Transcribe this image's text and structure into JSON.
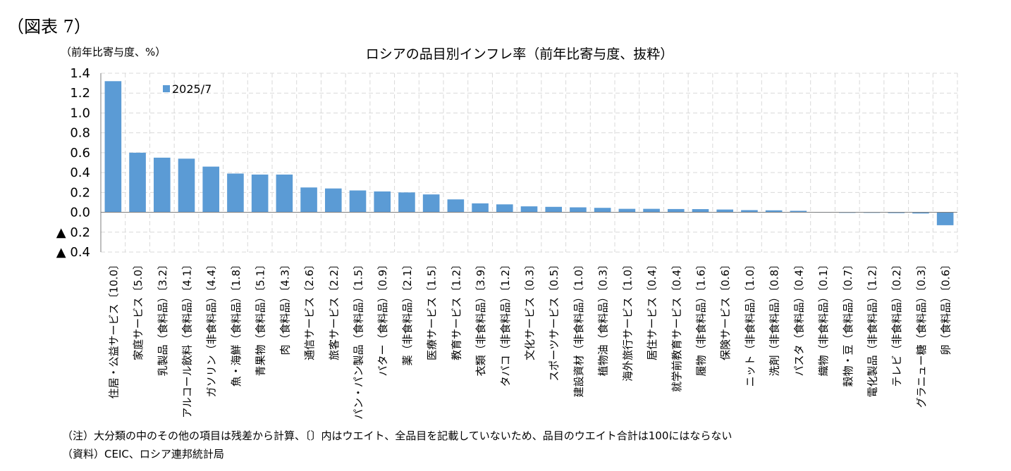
{
  "figure_label": "（図表 7）",
  "unit_label": "（前年比寄与度、%）",
  "note": "（注）大分類の中のその他の項目は残差から計算、〔〕内はウエイト、全品目を記載していないため、品目のウエイト合計は100にはならない",
  "source": "（資料）CEIC、ロシア連邦統計局",
  "colors": {
    "bar": "#5b9bd5",
    "grid": "#d9d9d9",
    "axis": "#7f7f7f"
  },
  "chart_data": {
    "type": "bar",
    "title": "ロシアの品目別インフレ率（前年比寄与度、抜粋）",
    "ylabel": "（前年比寄与度、%）",
    "ylim": [
      -0.4,
      1.4
    ],
    "yticks": [
      1.4,
      1.2,
      1.0,
      0.8,
      0.6,
      0.4,
      0.2,
      0.0,
      -0.2,
      -0.4
    ],
    "ytick_labels": [
      "1.4",
      "1.2",
      "1.0",
      "0.8",
      "0.6",
      "0.4",
      "0.2",
      "0.0",
      "▲ 0.2",
      "▲ 0.4"
    ],
    "legend": [
      {
        "name": "2025/7",
        "position": "top-left"
      }
    ],
    "categories": [
      "住居・公益サービス〔10.0〕",
      "家庭サービス〔5.0〕",
      "乳製品（食料品）〔3.2〕",
      "アルコール飲料（食料品）〔4.1〕",
      "ガソリン（非食料品）〔4.4〕",
      "魚・海鮮（食料品）〔1.8〕",
      "青果物（食料品）〔5.1〕",
      "肉（食料品）〔4.3〕",
      "通信サービス〔2.6〕",
      "旅客サービス〔2.2〕",
      "パン・パン製品（食料品）〔1.5〕",
      "バター（食料品）〔0.9〕",
      "薬（非食料品）〔2.1〕",
      "医療サービス〔1.5〕",
      "教育サービス〔1.2〕",
      "衣類（非食料品）〔3.9〕",
      "タバコ（非食料品）〔1.2〕",
      "文化サービス〔0.3〕",
      "スポーツサービス〔0.5〕",
      "建設資材（非食料品）〔1.0〕",
      "植物油（食料品）〔0.3〕",
      "海外旅行サービス〔1.0〕",
      "居住サービス〔0.4〕",
      "就学前教育サービス〔0.4〕",
      "履物（非食料品）〔1.6〕",
      "保険サービス〔0.6〕",
      "ニット（非食料品）〔1.0〕",
      "洗剤（非食料品）〔0.8〕",
      "パスタ（食料品）〔0.4〕",
      "織物（非食料品）〔0.1〕",
      "穀物・豆（食料品）〔0.7〕",
      "電化製品（非食料品）〔1.2〕",
      "テレビ（非食料品）〔0.2〕",
      "グラニュー糖（食料品）〔0.3〕",
      "卵（食料品）〔0.6〕"
    ],
    "series": [
      {
        "name": "2025/7",
        "values": [
          1.32,
          0.6,
          0.55,
          0.54,
          0.46,
          0.39,
          0.38,
          0.38,
          0.25,
          0.24,
          0.22,
          0.21,
          0.2,
          0.18,
          0.13,
          0.09,
          0.08,
          0.06,
          0.055,
          0.05,
          0.045,
          0.035,
          0.035,
          0.033,
          0.032,
          0.028,
          0.022,
          0.02,
          0.015,
          0.002,
          0.0,
          -0.005,
          -0.008,
          -0.012,
          -0.13
        ]
      }
    ]
  }
}
